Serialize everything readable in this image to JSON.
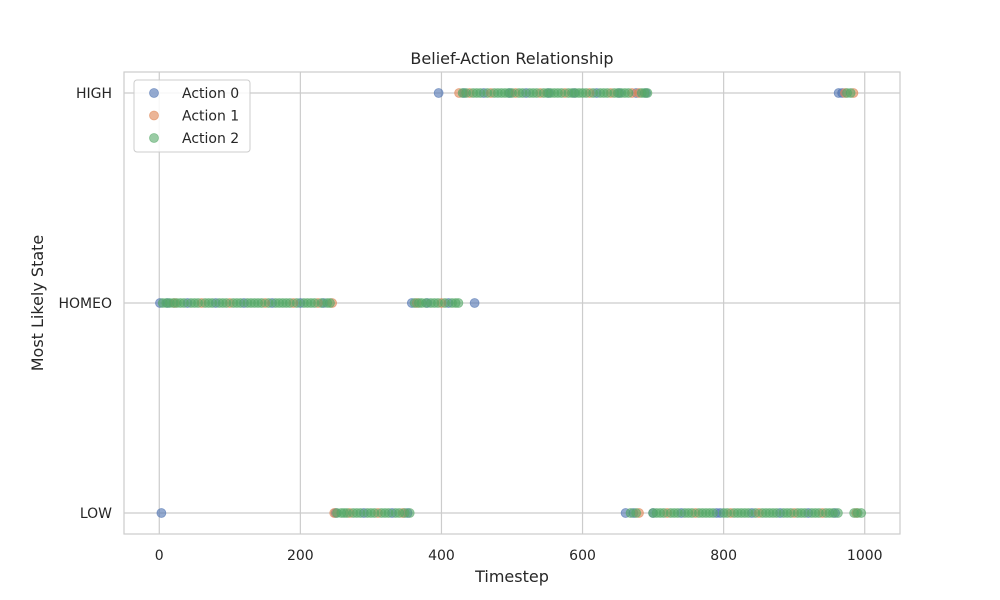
{
  "chart_data": {
    "type": "scatter",
    "title": "Belief-Action Relationship",
    "xlabel": "Timestep",
    "ylabel": "Most Likely State",
    "xlim": [
      -50,
      1050
    ],
    "x_ticks": [
      0,
      200,
      400,
      600,
      800,
      1000
    ],
    "x_tick_labels": [
      "0",
      "200",
      "400",
      "600",
      "800",
      "1000"
    ],
    "y_categories": [
      "LOW",
      "HOMEO",
      "HIGH"
    ],
    "grid": true,
    "legend_position": "top-left",
    "series": [
      {
        "name": "Action 0",
        "color": "#4c72b0",
        "points": [
          {
            "state": "HIGH",
            "x": [
              396,
              432,
              460,
              497,
              520,
              552,
              588,
              620,
              652,
              676,
              690,
              963,
              968
            ]
          },
          {
            "state": "HOMEO",
            "x": [
              1,
              12,
              40,
              80,
              120,
              160,
              200,
              233,
              358,
              380,
              410,
              447
            ]
          },
          {
            "state": "LOW",
            "x": [
              3,
              250,
              290,
              330,
              352,
              661,
              672,
              700,
              740,
              790,
              795,
              840,
              880,
              920,
              958
            ]
          }
        ]
      },
      {
        "name": "Action 1",
        "color": "#dd8452",
        "points": [
          {
            "state": "HIGH",
            "x": [
              425,
              440,
              470,
              505,
              540,
              575,
              610,
              640,
              670,
              680,
              972,
              984
            ]
          },
          {
            "state": "HOMEO",
            "x": [
              22,
              60,
              100,
              150,
              190,
              225,
              245,
              365,
              400
            ]
          },
          {
            "state": "LOW",
            "x": [
              248,
              270,
              310,
              345,
              680,
              720,
              760,
              810,
              850,
              900,
              940,
              988
            ]
          }
        ]
      },
      {
        "name": "Action 2",
        "color": "#55a868",
        "points": [
          {
            "state": "HIGH",
            "x": [
              430,
              435,
              445,
              450,
              455,
              465,
              475,
              480,
              485,
              490,
              495,
              500,
              510,
              515,
              525,
              530,
              535,
              545,
              550,
              555,
              560,
              565,
              570,
              580,
              585,
              590,
              595,
              600,
              605,
              615,
              625,
              630,
              635,
              645,
              650,
              655,
              660,
              665,
              684,
              688,
              692,
              975,
              980
            ]
          },
          {
            "state": "HOMEO",
            "x": [
              5,
              10,
              15,
              20,
              25,
              30,
              35,
              45,
              50,
              55,
              65,
              70,
              75,
              85,
              90,
              95,
              105,
              110,
              115,
              125,
              130,
              135,
              140,
              145,
              155,
              165,
              170,
              175,
              180,
              185,
              195,
              205,
              210,
              215,
              220,
              230,
              238,
              242,
              362,
              368,
              372,
              378,
              385,
              390,
              395,
              405,
              415,
              420,
              424
            ]
          },
          {
            "state": "LOW",
            "x": [
              252,
              258,
              262,
              266,
              275,
              280,
              285,
              295,
              300,
              305,
              315,
              320,
              325,
              335,
              340,
              348,
              355,
              668,
              676,
              700,
              705,
              710,
              715,
              725,
              730,
              735,
              745,
              750,
              755,
              765,
              770,
              775,
              780,
              785,
              800,
              805,
              815,
              820,
              825,
              830,
              835,
              845,
              855,
              860,
              865,
              870,
              875,
              885,
              890,
              895,
              905,
              910,
              915,
              925,
              930,
              935,
              945,
              950,
              955,
              962,
              985,
              990,
              995
            ]
          }
        ]
      }
    ]
  }
}
